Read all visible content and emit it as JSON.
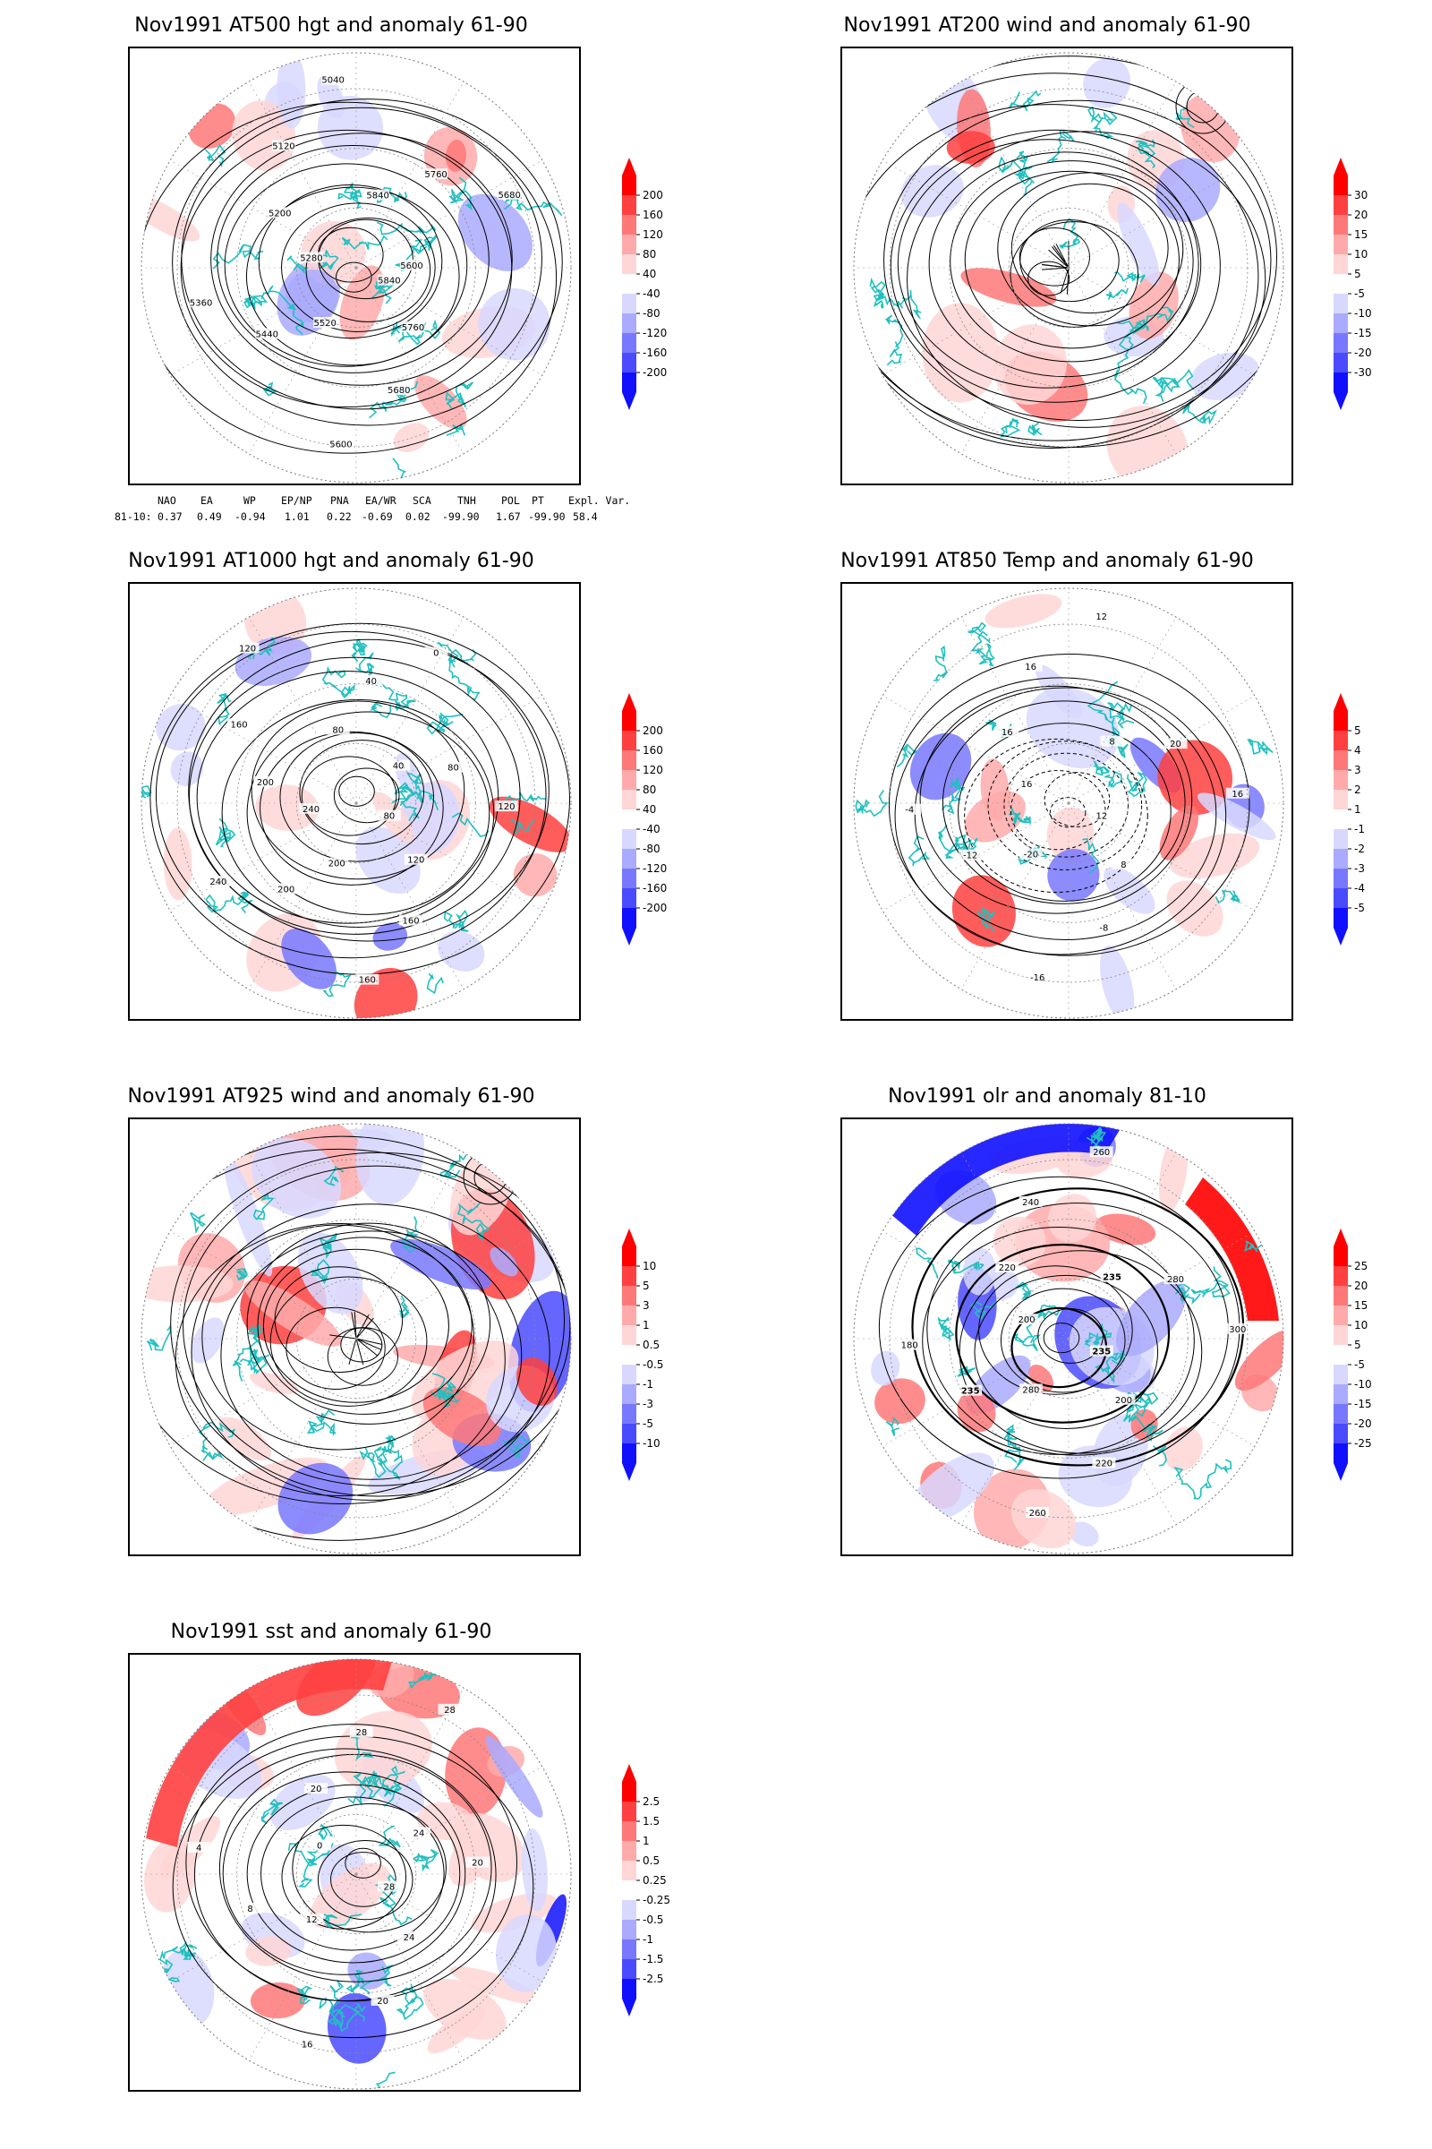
{
  "panels": [
    {
      "id": "p1",
      "title": "Nov1991 AT500 hgt and anomaly 61-90",
      "colorbar": [
        "200",
        "160",
        "120",
        "80",
        "40",
        "-40",
        "-80",
        "-120",
        "-160",
        "-200"
      ],
      "contour_labels": [
        "5840",
        "5760",
        "5680",
        "5600",
        "5520",
        "5440",
        "5360",
        "5280",
        "5200",
        "5120",
        "5040",
        "5840",
        "5760",
        "5680",
        "5600"
      ]
    },
    {
      "id": "p2",
      "title": "Nov1991 AT200 wind and anomaly 61-90",
      "colorbar": [
        "30",
        "20",
        "15",
        "10",
        "5",
        "-5",
        "-10",
        "-15",
        "-20",
        "-30"
      ],
      "contour_labels": []
    },
    {
      "id": "p3",
      "title": "Nov1991 AT1000 hgt and anomaly 61-90",
      "colorbar": [
        "200",
        "160",
        "120",
        "80",
        "40",
        "-40",
        "-80",
        "-120",
        "-160",
        "-200"
      ],
      "contour_labels": [
        "80",
        "120",
        "160",
        "160",
        "200",
        "200",
        "240",
        "240",
        "200",
        "160",
        "120",
        "80",
        "40",
        "0",
        "40",
        "80",
        "120"
      ]
    },
    {
      "id": "p4",
      "title": "Nov1991 AT850 Temp and anomaly 61-90",
      "colorbar": [
        "5",
        "4",
        "3",
        "2",
        "1",
        "-1",
        "-2",
        "-3",
        "-4",
        "-5"
      ],
      "contour_labels": [
        "12",
        "8",
        "-8",
        "-16",
        "-20",
        "-12",
        "-4",
        "16",
        "16",
        "16",
        "12",
        "8",
        "20",
        "16"
      ]
    },
    {
      "id": "p5",
      "title": "Nov1991 AT925 wind and anomaly 61-90",
      "colorbar": [
        "10",
        "5",
        "3",
        "1",
        "0.5",
        "-0.5",
        "-1",
        "-3",
        "-5",
        "-10"
      ],
      "contour_labels": []
    },
    {
      "id": "p6",
      "title": "Nov1991 olr and anomaly 81-10",
      "colorbar": [
        "25",
        "20",
        "15",
        "10",
        "5",
        "-5",
        "-10",
        "-15",
        "-20",
        "-25"
      ],
      "contour_labels": [
        "235",
        "200",
        "220",
        "260",
        "280",
        "235",
        "180",
        "200",
        "220",
        "240",
        "260",
        "235",
        "280",
        "300"
      ]
    },
    {
      "id": "p7",
      "title": "Nov1991 sst and anomaly 61-90",
      "colorbar": [
        "2.5",
        "1.5",
        "1",
        "0.5",
        "0.25",
        "-0.25",
        "-0.5",
        "-1",
        "-1.5",
        "-2.5"
      ],
      "contour_labels": [
        "28",
        "24",
        "20",
        "16",
        "12",
        "8",
        "4",
        "0",
        "20",
        "28",
        "28",
        "24",
        "20"
      ]
    }
  ],
  "indices": {
    "headers": [
      "NAO",
      "EA",
      "WP",
      "EP/NP",
      "PNA",
      "EA/WR",
      "SCA",
      "TNH",
      "POL",
      "PT",
      "Expl. Var."
    ],
    "row_label": "81-10:",
    "values": [
      "0.37",
      "0.49",
      "-0.94",
      "1.01",
      "0.22",
      "-0.69",
      "0.02",
      "-99.90",
      "1.67",
      "-99.90",
      "58.4"
    ]
  },
  "colors": {
    "coast": "#20c0c0",
    "pos_scale": [
      "#ff0000",
      "#ff4040",
      "#ff7878",
      "#ffaaaa",
      "#ffd6d6"
    ],
    "neg_scale": [
      "#d8d8ff",
      "#aaaaff",
      "#7878ff",
      "#4a4aff",
      "#1010ff"
    ],
    "contour": "#000000"
  }
}
